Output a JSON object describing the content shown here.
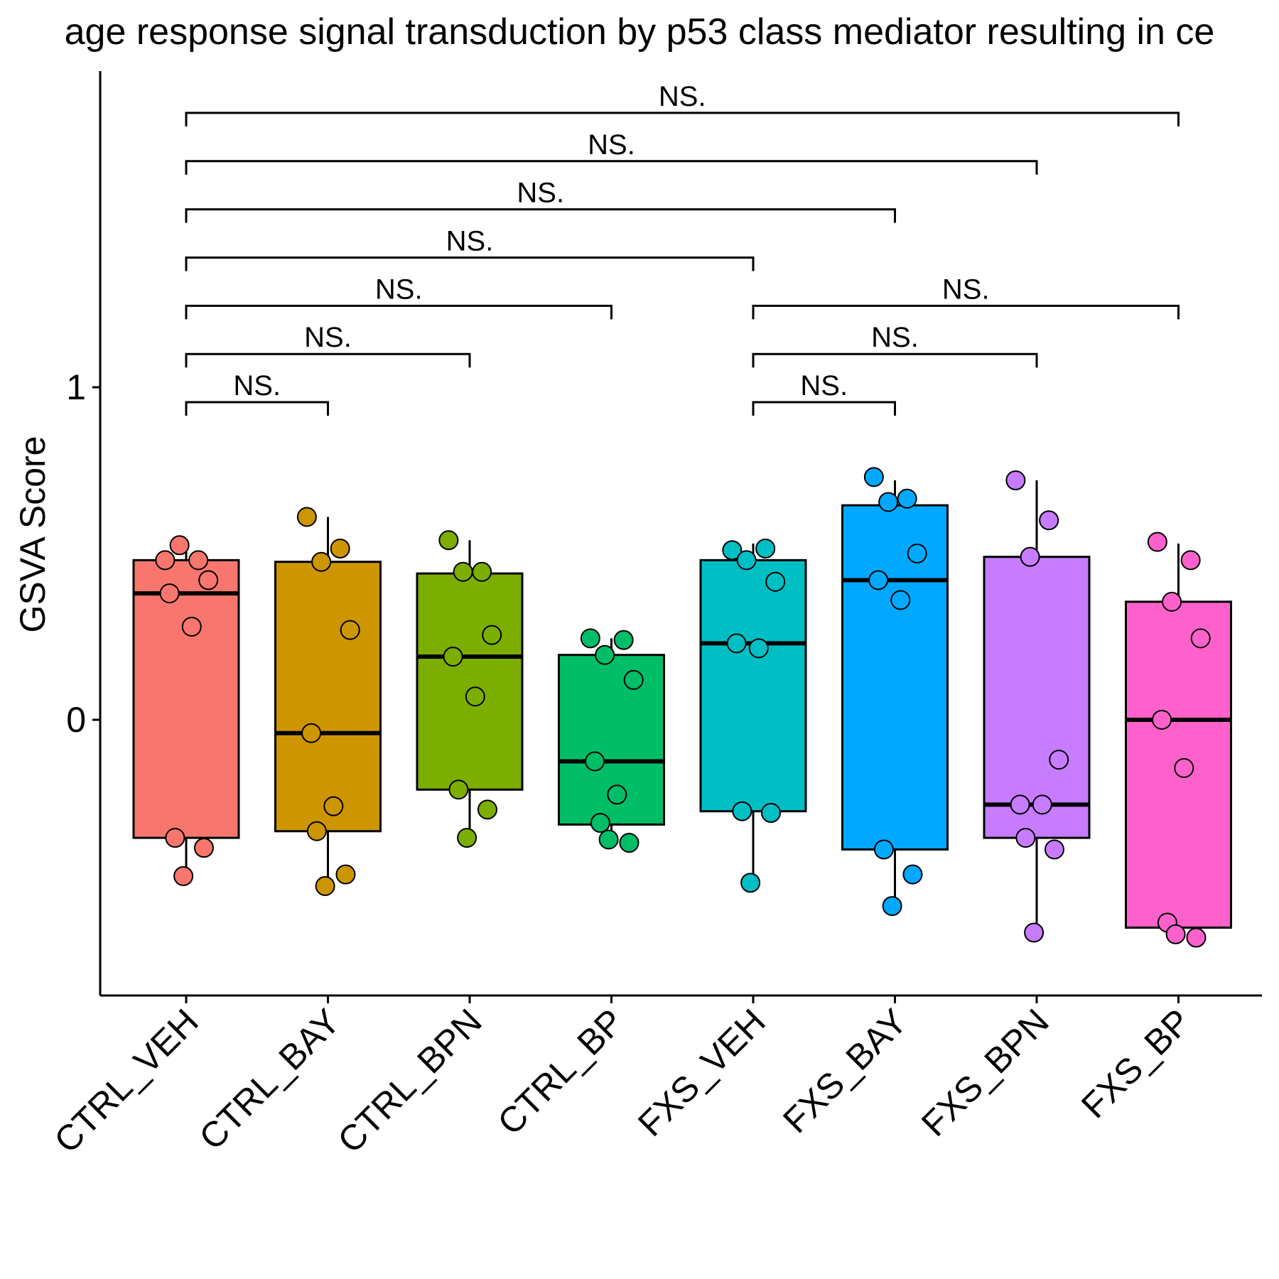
{
  "chart_data": {
    "type": "boxplot",
    "title": "age response signal transduction by p53 class mediator resulting in ce",
    "ylabel": "GSVA Score",
    "xlabel": "",
    "ylim": [
      -0.82,
      1.95
    ],
    "yticks": [
      0,
      1
    ],
    "ytick_labels": [
      "0",
      "1"
    ],
    "grid": false,
    "legend": "none",
    "categories": [
      "CTRL_VEH",
      "CTRL_BAY",
      "CTRL_BPN",
      "CTRL_BP",
      "FXS_VEH",
      "FXS_BAY",
      "FXS_BPN",
      "FXS_BP"
    ],
    "colors": [
      "#F8766D",
      "#CD9600",
      "#7CAE00",
      "#00BE67",
      "#00BFC4",
      "#00A9FF",
      "#C77CFF",
      "#FF61CC"
    ],
    "boxes": [
      {
        "q1": -0.355,
        "median": 0.38,
        "q3": 0.48,
        "whisker_low": -0.47,
        "whisker_high": 0.53
      },
      {
        "q1": -0.335,
        "median": -0.04,
        "q3": 0.475,
        "whisker_low": -0.5,
        "whisker_high": 0.61
      },
      {
        "q1": -0.21,
        "median": 0.19,
        "q3": 0.44,
        "whisker_low": -0.355,
        "whisker_high": 0.54
      },
      {
        "q1": -0.315,
        "median": -0.125,
        "q3": 0.195,
        "whisker_low": -0.37,
        "whisker_high": 0.245
      },
      {
        "q1": -0.275,
        "median": 0.23,
        "q3": 0.48,
        "whisker_low": -0.485,
        "whisker_high": 0.53
      },
      {
        "q1": -0.39,
        "median": 0.42,
        "q3": 0.645,
        "whisker_low": -0.56,
        "whisker_high": 0.72
      },
      {
        "q1": -0.355,
        "median": -0.255,
        "q3": 0.49,
        "whisker_low": -0.64,
        "whisker_high": 0.72
      },
      {
        "q1": -0.625,
        "median": 0,
        "q3": 0.355,
        "whisker_low": -0.66,
        "whisker_high": 0.53
      }
    ],
    "points": [
      [
        0.48,
        0.48,
        0.525,
        0.42,
        0.38,
        0.28,
        -0.355,
        -0.385,
        -0.47
      ],
      [
        0.61,
        0.515,
        0.475,
        0.27,
        -0.04,
        -0.26,
        -0.335,
        -0.465,
        -0.5
      ],
      [
        0.54,
        0.445,
        0.445,
        0.255,
        0.19,
        0.07,
        -0.21,
        -0.27,
        -0.355
      ],
      [
        0.245,
        0.24,
        0.195,
        0.12,
        -0.125,
        -0.225,
        -0.31,
        -0.37,
        -0.36
      ],
      [
        0.51,
        0.515,
        0.48,
        0.415,
        0.23,
        0.215,
        -0.275,
        -0.28,
        -0.49
      ],
      [
        0.73,
        0.665,
        0.655,
        0.5,
        0.42,
        0.36,
        -0.39,
        -0.465,
        -0.56
      ],
      [
        0.72,
        0.6,
        0.49,
        -0.12,
        -0.255,
        -0.255,
        -0.355,
        -0.39,
        -0.64
      ],
      [
        0.535,
        0.48,
        0.355,
        0.245,
        0,
        -0.145,
        -0.61,
        -0.655,
        -0.645
      ]
    ],
    "comparisons": [
      {
        "from": "CTRL_VEH",
        "to": "CTRL_BAY",
        "y": 0.955,
        "label": "NS."
      },
      {
        "from": "CTRL_VEH",
        "to": "CTRL_BPN",
        "y": 1.1,
        "label": "NS."
      },
      {
        "from": "CTRL_VEH",
        "to": "CTRL_BP",
        "y": 1.245,
        "label": "NS."
      },
      {
        "from": "CTRL_VEH",
        "to": "FXS_VEH",
        "y": 1.39,
        "label": "NS."
      },
      {
        "from": "CTRL_VEH",
        "to": "FXS_BAY",
        "y": 1.535,
        "label": "NS."
      },
      {
        "from": "CTRL_VEH",
        "to": "FXS_BPN",
        "y": 1.68,
        "label": "NS."
      },
      {
        "from": "CTRL_VEH",
        "to": "FXS_BP",
        "y": 1.825,
        "label": "NS."
      },
      {
        "from": "FXS_VEH",
        "to": "FXS_BAY",
        "y": 0.955,
        "label": "NS."
      },
      {
        "from": "FXS_VEH",
        "to": "FXS_BPN",
        "y": 1.1,
        "label": "NS."
      },
      {
        "from": "FXS_VEH",
        "to": "FXS_BP",
        "y": 1.245,
        "label": "NS."
      }
    ]
  }
}
